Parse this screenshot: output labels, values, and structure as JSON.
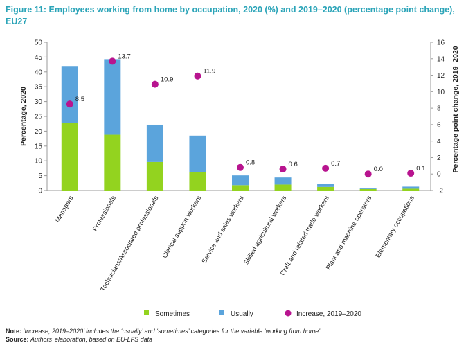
{
  "title": "Figure 11: Employees working from home by occupation, 2020 (%) and 2019–2020 (percentage point change), EU27",
  "note_label": "Note:",
  "note_text": "‘Increase, 2019–2020’ includes the ‘usually’ and ‘sometimes’ categories for the variable ‘working from home’.",
  "source_label": "Source:",
  "source_text": "Authors’ elaboration, based on EU-LFS data",
  "colors": {
    "sometimes": "#93d31f",
    "usually": "#5ba4dc",
    "increase": "#b8148f"
  },
  "chart_data": {
    "type": "bar",
    "stacked": true,
    "categories": [
      "Managers",
      "Professionals",
      "Technicians/Associated professionals",
      "Clerical support workers",
      "Service and sales workers",
      "Skilled agricultural workers",
      "Craft and related trade workers",
      "Plant and machine operators",
      "Elementary occupations"
    ],
    "series": [
      {
        "name": "Sometimes",
        "axis": "left",
        "values": [
          22.7,
          18.8,
          9.6,
          6.3,
          1.8,
          2.0,
          1.2,
          0.5,
          0.6
        ]
      },
      {
        "name": "Usually",
        "axis": "left",
        "values": [
          19.3,
          25.5,
          12.6,
          12.2,
          3.3,
          2.4,
          1.0,
          0.4,
          0.7
        ]
      },
      {
        "name": "Increase, 2019–2020",
        "axis": "right",
        "type": "scatter",
        "values": [
          8.5,
          13.7,
          10.9,
          11.9,
          0.8,
          0.6,
          0.7,
          0.0,
          0.1
        ],
        "labels": [
          "8.5",
          "13.7",
          "10.9",
          "11.9",
          "0.8",
          "0.6",
          "0.7",
          "0.0",
          "0.1"
        ]
      }
    ],
    "ylabel": "Percentage, 2020",
    "y2label": "Percentage point change, 2019–2020",
    "ylim": [
      0,
      50
    ],
    "y2lim": [
      -2,
      16
    ],
    "yticks": [
      "0",
      "5",
      "10",
      "15",
      "20",
      "25",
      "30",
      "35",
      "40",
      "45",
      "50"
    ],
    "y2ticks": [
      "-2",
      "0",
      "2",
      "4",
      "6",
      "8",
      "10",
      "12",
      "14",
      "16"
    ],
    "legend": [
      "Sometimes",
      "Usually",
      "Increase, 2019–2020"
    ],
    "legend_position": "bottom",
    "grid": false
  }
}
